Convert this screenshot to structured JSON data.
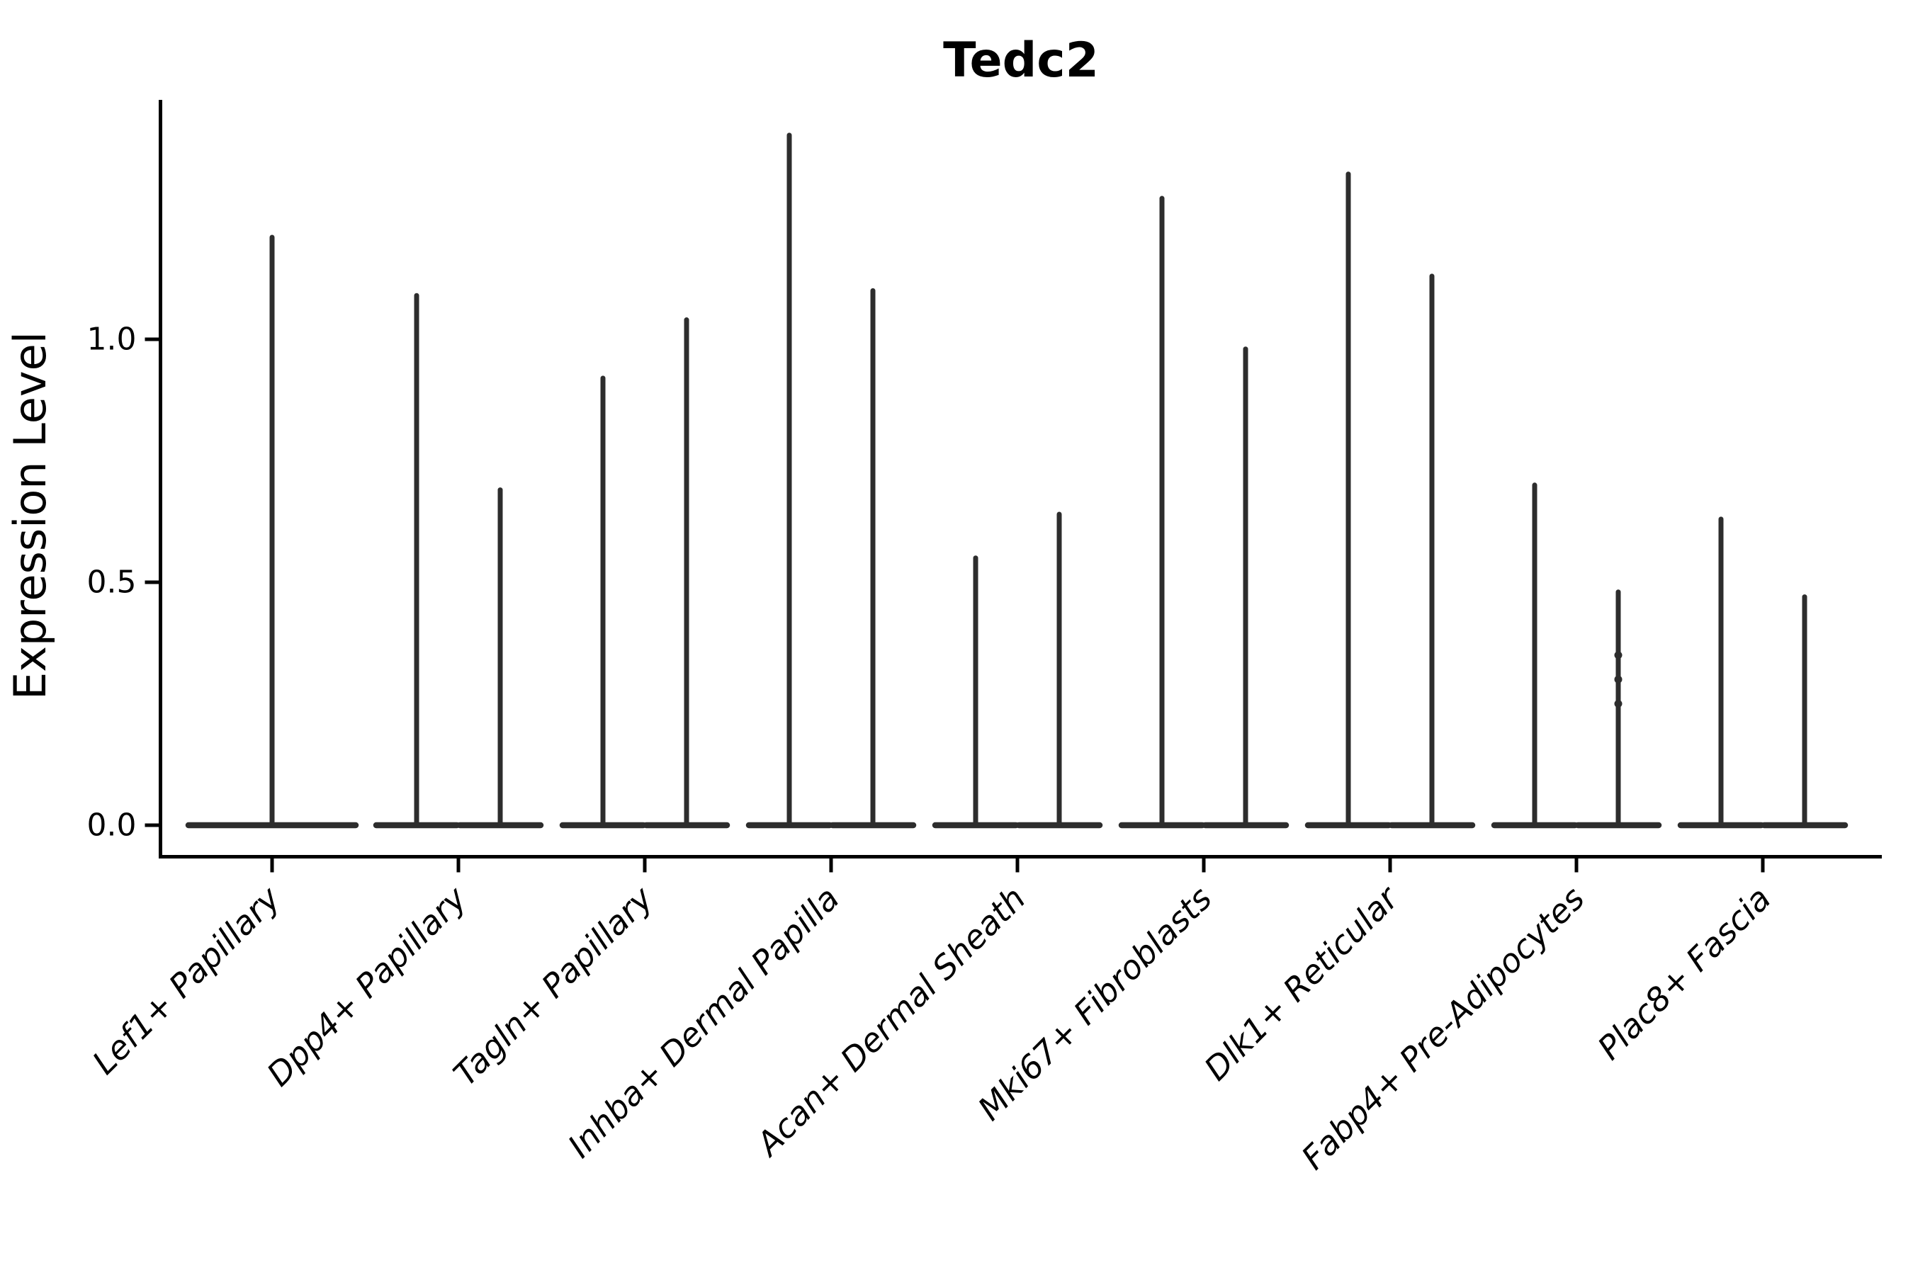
{
  "figure": {
    "background": "#ffffff",
    "line_color": "#2d2d2d",
    "axis_color": "#000000",
    "text_color": "#000000"
  },
  "chart_data": {
    "type": "violin",
    "title": "Tedc2",
    "xlabel": "",
    "ylabel": "Expression Level",
    "yticks": [
      0.0,
      0.5,
      1.0
    ],
    "ylim": [
      -0.065,
      1.49
    ],
    "legend": "none",
    "grid": false,
    "style": "thin-spike violins with wide flat base at 0 (most cells zero expression), split into two violins per category except the first",
    "categories": [
      {
        "label": "Lef1+ Papillary",
        "violin_max": [
          1.21
        ]
      },
      {
        "label": "Dpp4+ Papillary",
        "violin_max": [
          1.09,
          0.69
        ]
      },
      {
        "label": "Tagln+ Papillary",
        "violin_max": [
          0.92,
          1.04
        ]
      },
      {
        "label": "Inhba+ Dermal Papilla",
        "violin_max": [
          1.42,
          1.1
        ]
      },
      {
        "label": "Acan+ Dermal Sheath",
        "violin_max": [
          0.55,
          0.64
        ]
      },
      {
        "label": "Mki67+ Fibroblasts",
        "violin_max": [
          1.29,
          0.98
        ]
      },
      {
        "label": "Dlk1+ Reticular",
        "violin_max": [
          1.34,
          1.13
        ]
      },
      {
        "label": "Fabp4+ Pre-Adipocytes",
        "violin_max": [
          0.7,
          0.48
        ]
      },
      {
        "label": "Plac8+ Fascia",
        "violin_max": [
          0.63,
          0.47
        ]
      }
    ],
    "scatter_points": [
      {
        "category_index": 7,
        "violin_index": 1,
        "values": [
          0.35,
          0.3,
          0.25
        ]
      }
    ]
  }
}
